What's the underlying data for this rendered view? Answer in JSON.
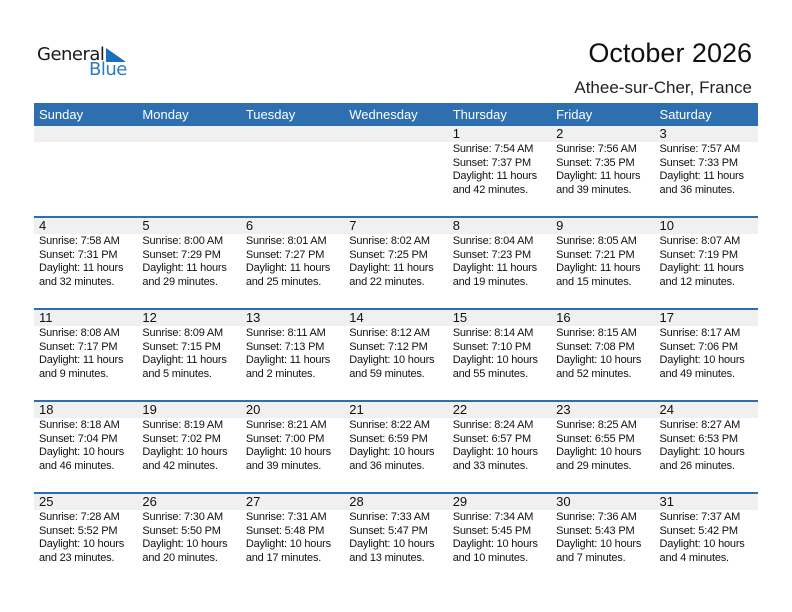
{
  "logo": {
    "line1": "General",
    "line2": "Blue"
  },
  "title": "October 2026",
  "location": "Athee-sur-Cher, France",
  "colors": {
    "header": "#2e6fb0",
    "band": "#f0f0f0",
    "logo_blue": "#2a7bc4"
  },
  "weekdays": [
    "Sunday",
    "Monday",
    "Tuesday",
    "Wednesday",
    "Thursday",
    "Friday",
    "Saturday"
  ],
  "weeks": [
    [
      null,
      null,
      null,
      null,
      {
        "day": "1",
        "sunrise": "Sunrise: 7:54 AM",
        "sunset": "Sunset: 7:37 PM",
        "daylight": "Daylight: 11 hours",
        "minutes": "and 42 minutes."
      },
      {
        "day": "2",
        "sunrise": "Sunrise: 7:56 AM",
        "sunset": "Sunset: 7:35 PM",
        "daylight": "Daylight: 11 hours",
        "minutes": "and 39 minutes."
      },
      {
        "day": "3",
        "sunrise": "Sunrise: 7:57 AM",
        "sunset": "Sunset: 7:33 PM",
        "daylight": "Daylight: 11 hours",
        "minutes": "and 36 minutes."
      }
    ],
    [
      {
        "day": "4",
        "sunrise": "Sunrise: 7:58 AM",
        "sunset": "Sunset: 7:31 PM",
        "daylight": "Daylight: 11 hours",
        "minutes": "and 32 minutes."
      },
      {
        "day": "5",
        "sunrise": "Sunrise: 8:00 AM",
        "sunset": "Sunset: 7:29 PM",
        "daylight": "Daylight: 11 hours",
        "minutes": "and 29 minutes."
      },
      {
        "day": "6",
        "sunrise": "Sunrise: 8:01 AM",
        "sunset": "Sunset: 7:27 PM",
        "daylight": "Daylight: 11 hours",
        "minutes": "and 25 minutes."
      },
      {
        "day": "7",
        "sunrise": "Sunrise: 8:02 AM",
        "sunset": "Sunset: 7:25 PM",
        "daylight": "Daylight: 11 hours",
        "minutes": "and 22 minutes."
      },
      {
        "day": "8",
        "sunrise": "Sunrise: 8:04 AM",
        "sunset": "Sunset: 7:23 PM",
        "daylight": "Daylight: 11 hours",
        "minutes": "and 19 minutes."
      },
      {
        "day": "9",
        "sunrise": "Sunrise: 8:05 AM",
        "sunset": "Sunset: 7:21 PM",
        "daylight": "Daylight: 11 hours",
        "minutes": "and 15 minutes."
      },
      {
        "day": "10",
        "sunrise": "Sunrise: 8:07 AM",
        "sunset": "Sunset: 7:19 PM",
        "daylight": "Daylight: 11 hours",
        "minutes": "and 12 minutes."
      }
    ],
    [
      {
        "day": "11",
        "sunrise": "Sunrise: 8:08 AM",
        "sunset": "Sunset: 7:17 PM",
        "daylight": "Daylight: 11 hours",
        "minutes": "and 9 minutes."
      },
      {
        "day": "12",
        "sunrise": "Sunrise: 8:09 AM",
        "sunset": "Sunset: 7:15 PM",
        "daylight": "Daylight: 11 hours",
        "minutes": "and 5 minutes."
      },
      {
        "day": "13",
        "sunrise": "Sunrise: 8:11 AM",
        "sunset": "Sunset: 7:13 PM",
        "daylight": "Daylight: 11 hours",
        "minutes": "and 2 minutes."
      },
      {
        "day": "14",
        "sunrise": "Sunrise: 8:12 AM",
        "sunset": "Sunset: 7:12 PM",
        "daylight": "Daylight: 10 hours",
        "minutes": "and 59 minutes."
      },
      {
        "day": "15",
        "sunrise": "Sunrise: 8:14 AM",
        "sunset": "Sunset: 7:10 PM",
        "daylight": "Daylight: 10 hours",
        "minutes": "and 55 minutes."
      },
      {
        "day": "16",
        "sunrise": "Sunrise: 8:15 AM",
        "sunset": "Sunset: 7:08 PM",
        "daylight": "Daylight: 10 hours",
        "minutes": "and 52 minutes."
      },
      {
        "day": "17",
        "sunrise": "Sunrise: 8:17 AM",
        "sunset": "Sunset: 7:06 PM",
        "daylight": "Daylight: 10 hours",
        "minutes": "and 49 minutes."
      }
    ],
    [
      {
        "day": "18",
        "sunrise": "Sunrise: 8:18 AM",
        "sunset": "Sunset: 7:04 PM",
        "daylight": "Daylight: 10 hours",
        "minutes": "and 46 minutes."
      },
      {
        "day": "19",
        "sunrise": "Sunrise: 8:19 AM",
        "sunset": "Sunset: 7:02 PM",
        "daylight": "Daylight: 10 hours",
        "minutes": "and 42 minutes."
      },
      {
        "day": "20",
        "sunrise": "Sunrise: 8:21 AM",
        "sunset": "Sunset: 7:00 PM",
        "daylight": "Daylight: 10 hours",
        "minutes": "and 39 minutes."
      },
      {
        "day": "21",
        "sunrise": "Sunrise: 8:22 AM",
        "sunset": "Sunset: 6:59 PM",
        "daylight": "Daylight: 10 hours",
        "minutes": "and 36 minutes."
      },
      {
        "day": "22",
        "sunrise": "Sunrise: 8:24 AM",
        "sunset": "Sunset: 6:57 PM",
        "daylight": "Daylight: 10 hours",
        "minutes": "and 33 minutes."
      },
      {
        "day": "23",
        "sunrise": "Sunrise: 8:25 AM",
        "sunset": "Sunset: 6:55 PM",
        "daylight": "Daylight: 10 hours",
        "minutes": "and 29 minutes."
      },
      {
        "day": "24",
        "sunrise": "Sunrise: 8:27 AM",
        "sunset": "Sunset: 6:53 PM",
        "daylight": "Daylight: 10 hours",
        "minutes": "and 26 minutes."
      }
    ],
    [
      {
        "day": "25",
        "sunrise": "Sunrise: 7:28 AM",
        "sunset": "Sunset: 5:52 PM",
        "daylight": "Daylight: 10 hours",
        "minutes": "and 23 minutes."
      },
      {
        "day": "26",
        "sunrise": "Sunrise: 7:30 AM",
        "sunset": "Sunset: 5:50 PM",
        "daylight": "Daylight: 10 hours",
        "minutes": "and 20 minutes."
      },
      {
        "day": "27",
        "sunrise": "Sunrise: 7:31 AM",
        "sunset": "Sunset: 5:48 PM",
        "daylight": "Daylight: 10 hours",
        "minutes": "and 17 minutes."
      },
      {
        "day": "28",
        "sunrise": "Sunrise: 7:33 AM",
        "sunset": "Sunset: 5:47 PM",
        "daylight": "Daylight: 10 hours",
        "minutes": "and 13 minutes."
      },
      {
        "day": "29",
        "sunrise": "Sunrise: 7:34 AM",
        "sunset": "Sunset: 5:45 PM",
        "daylight": "Daylight: 10 hours",
        "minutes": "and 10 minutes."
      },
      {
        "day": "30",
        "sunrise": "Sunrise: 7:36 AM",
        "sunset": "Sunset: 5:43 PM",
        "daylight": "Daylight: 10 hours",
        "minutes": "and 7 minutes."
      },
      {
        "day": "31",
        "sunrise": "Sunrise: 7:37 AM",
        "sunset": "Sunset: 5:42 PM",
        "daylight": "Daylight: 10 hours",
        "minutes": "and 4 minutes."
      }
    ]
  ]
}
